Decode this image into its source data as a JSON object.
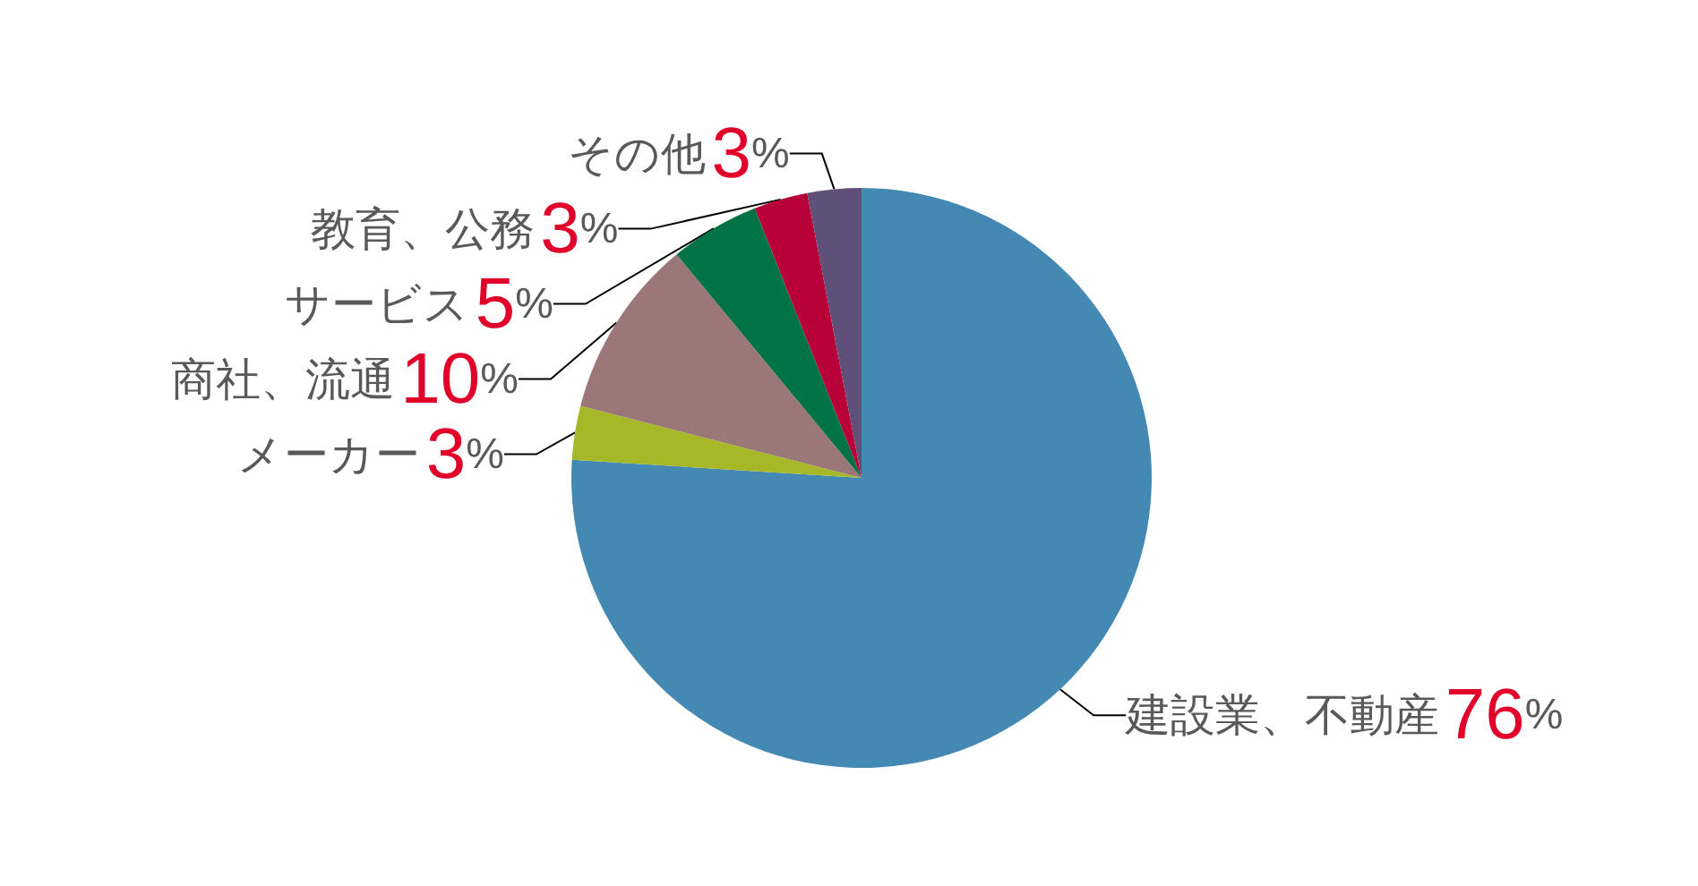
{
  "chart_data": {
    "type": "pie",
    "categories": [
      "建設業、不動産",
      "メーカー",
      "商社、流通",
      "サービス",
      "教育、公務",
      "その他"
    ],
    "values": [
      76,
      3,
      10,
      5,
      3,
      3
    ],
    "value_labels": [
      "76%",
      "3%",
      "10%",
      "5%",
      "3%",
      "3%"
    ],
    "colors": [
      "#4389b3",
      "#a6b727",
      "#9b7778",
      "#007346",
      "#b80039",
      "#5e5079"
    ],
    "legend": false
  }
}
